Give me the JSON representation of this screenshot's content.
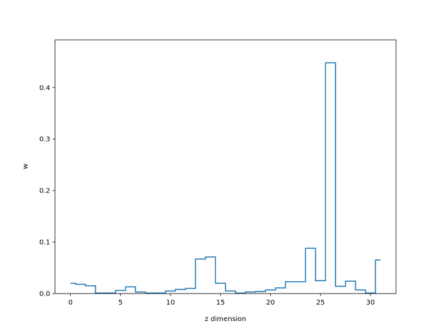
{
  "chart_data": {
    "type": "line",
    "drawstyle": "steps-mid",
    "title": "",
    "xlabel": "z dimension",
    "ylabel": "w",
    "xlim": [
      -1.55,
      32.55
    ],
    "ylim": [
      0,
      0.4925
    ],
    "xticks": [
      0,
      5,
      10,
      15,
      20,
      25,
      30
    ],
    "yticks": [
      0.0,
      0.1,
      0.2,
      0.3,
      0.4
    ],
    "ytick_labels": [
      "0.0",
      "0.1",
      "0.2",
      "0.3",
      "0.4"
    ],
    "grid": false,
    "series": [
      {
        "color": "#1f77b4",
        "x": [
          0,
          1,
          2,
          3,
          4,
          5,
          6,
          7,
          8,
          9,
          10,
          11,
          12,
          13,
          14,
          15,
          16,
          17,
          18,
          19,
          20,
          21,
          22,
          23,
          24,
          25,
          26,
          27,
          28,
          29,
          30,
          31
        ],
        "values": [
          0.02,
          0.018,
          0.015,
          0.001,
          0.001,
          0.006,
          0.013,
          0.003,
          0.001,
          0.001,
          0.005,
          0.008,
          0.01,
          0.067,
          0.071,
          0.02,
          0.005,
          0.001,
          0.003,
          0.004,
          0.007,
          0.011,
          0.023,
          0.023,
          0.088,
          0.025,
          0.448,
          0.014,
          0.024,
          0.007,
          0.001,
          0.065
        ]
      }
    ]
  }
}
